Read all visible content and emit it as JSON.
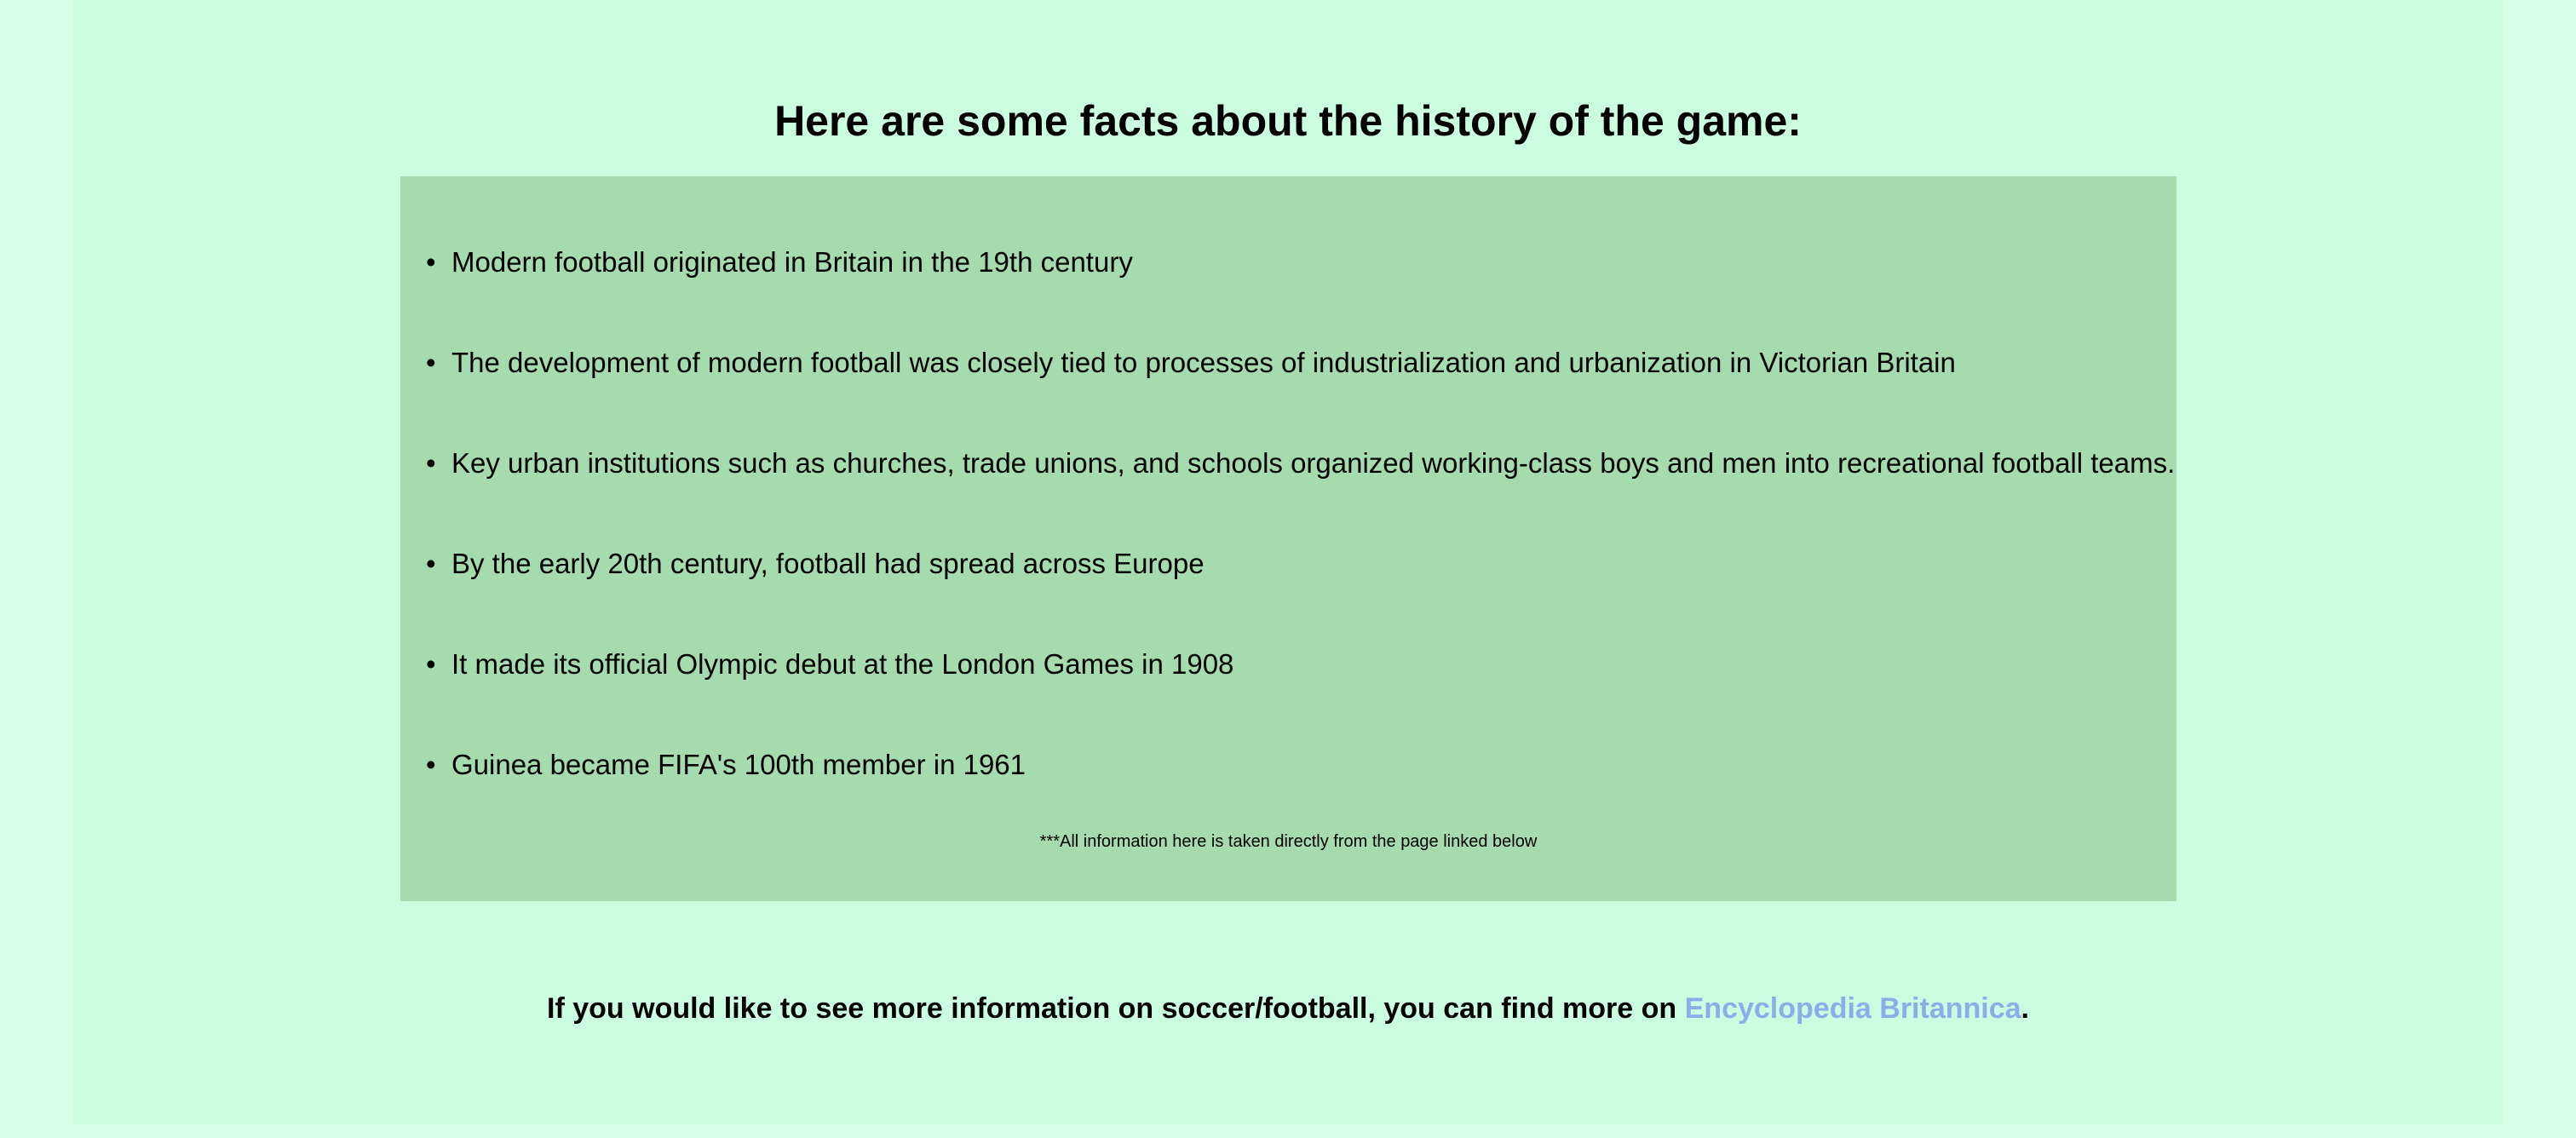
{
  "heading": "Here are some facts about the history of the game:",
  "facts": [
    "Modern football originated in Britain in the 19th century",
    "The development of modern football was closely tied to processes of industrialization and urbanization in Victorian Britain",
    "Key urban institutions such as churches, trade unions, and schools organized working-class boys and men into recreational football teams.",
    "By the early 20th century, football had spread across Europe",
    "It made its official Olympic debut at the London Games in 1908",
    "Guinea became FIFA's 100th member in 1961"
  ],
  "bullet": "•",
  "disclaimer": "***All information here is taken directly from the page linked below",
  "more_info": {
    "prefix": "If you would like to see more information on soccer/football, you can find more on ",
    "link_text": "Encyclopedia Britannica",
    "suffix": "."
  },
  "colors": {
    "page_background": "#cbfde0",
    "outer_background": "#d6fde6",
    "facts_box": "#a4dcb0",
    "link": "#8aaee8"
  }
}
